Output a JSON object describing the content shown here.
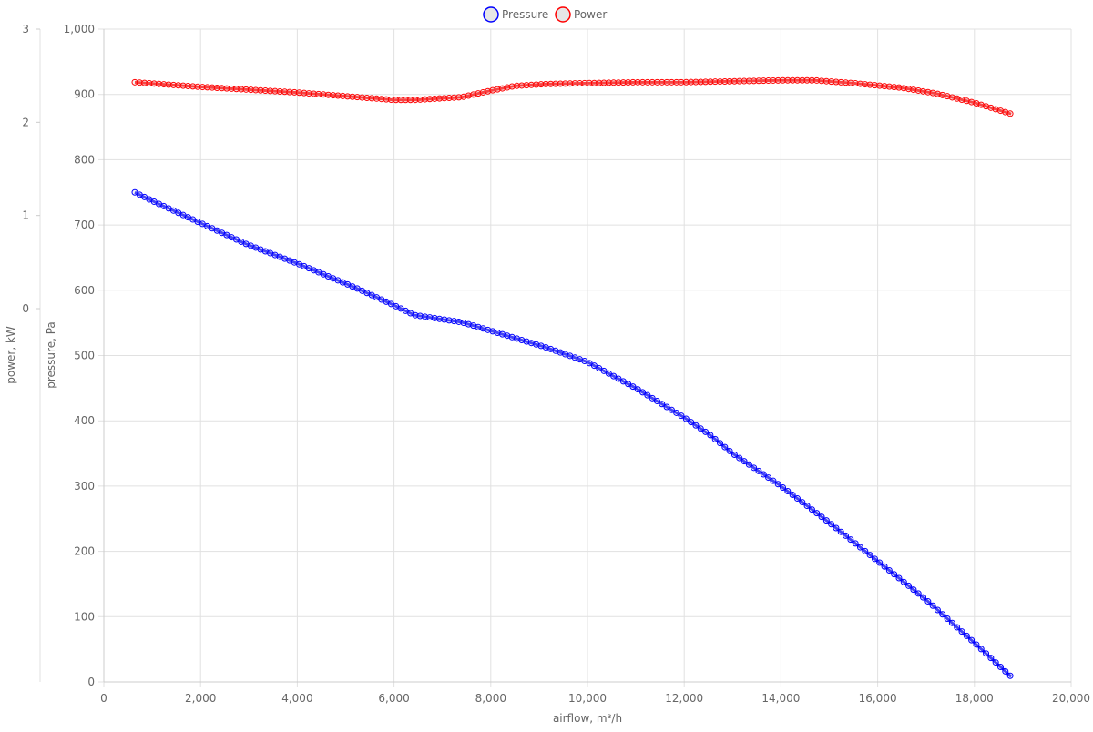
{
  "chart_data": {
    "type": "line",
    "legend": {
      "position": "top-center",
      "items": [
        "Pressure",
        "Power"
      ]
    },
    "xlabel": "airflow, m³/h",
    "ylabel_left": "power, kW",
    "ylabel_right_inner": "pressure, Pa",
    "xlim": [
      0,
      20000
    ],
    "ylim_pressure": [
      0,
      1000
    ],
    "ylim_power": [
      0,
      3
    ],
    "x_ticks": [
      "0",
      "2,000",
      "4,000",
      "6,000",
      "8,000",
      "10,000",
      "12,000",
      "14,000",
      "16,000",
      "18,000",
      "20,000"
    ],
    "pressure_ticks": [
      "0",
      "100",
      "200",
      "300",
      "400",
      "500",
      "600",
      "700",
      "800",
      "900",
      "1,000"
    ],
    "power_ticks": [
      "0",
      "1",
      "2",
      "3"
    ],
    "grid": true,
    "series": [
      {
        "name": "Pressure",
        "axis": "pressure",
        "color": "#0000ff",
        "points": [
          [
            640,
            750
          ],
          [
            1000,
            737
          ],
          [
            2000,
            703
          ],
          [
            2940,
            671
          ],
          [
            4070,
            639
          ],
          [
            5200,
            604
          ],
          [
            6000,
            577
          ],
          [
            6420,
            562
          ],
          [
            7400,
            551
          ],
          [
            8000,
            538
          ],
          [
            9120,
            513
          ],
          [
            10000,
            490
          ],
          [
            11000,
            450
          ],
          [
            12000,
            405
          ],
          [
            12540,
            378
          ],
          [
            13000,
            350
          ],
          [
            14000,
            300
          ],
          [
            15000,
            244
          ],
          [
            16000,
            185
          ],
          [
            17000,
            126
          ],
          [
            18000,
            60
          ],
          [
            18760,
            8
          ]
        ]
      },
      {
        "name": "Power",
        "axis": "power",
        "color": "#ff0000",
        "points": [
          [
            640,
            2.43
          ],
          [
            2000,
            2.38
          ],
          [
            3000,
            2.35
          ],
          [
            4000,
            2.32
          ],
          [
            5000,
            2.28
          ],
          [
            6000,
            2.24
          ],
          [
            6420,
            2.24
          ],
          [
            7400,
            2.27
          ],
          [
            8000,
            2.34
          ],
          [
            8500,
            2.39
          ],
          [
            9120,
            2.41
          ],
          [
            10000,
            2.42
          ],
          [
            11000,
            2.43
          ],
          [
            12000,
            2.43
          ],
          [
            13000,
            2.44
          ],
          [
            14000,
            2.45
          ],
          [
            14700,
            2.45
          ],
          [
            15500,
            2.42
          ],
          [
            16500,
            2.37
          ],
          [
            17200,
            2.31
          ],
          [
            18000,
            2.21
          ],
          [
            18760,
            2.09
          ]
        ]
      }
    ]
  }
}
